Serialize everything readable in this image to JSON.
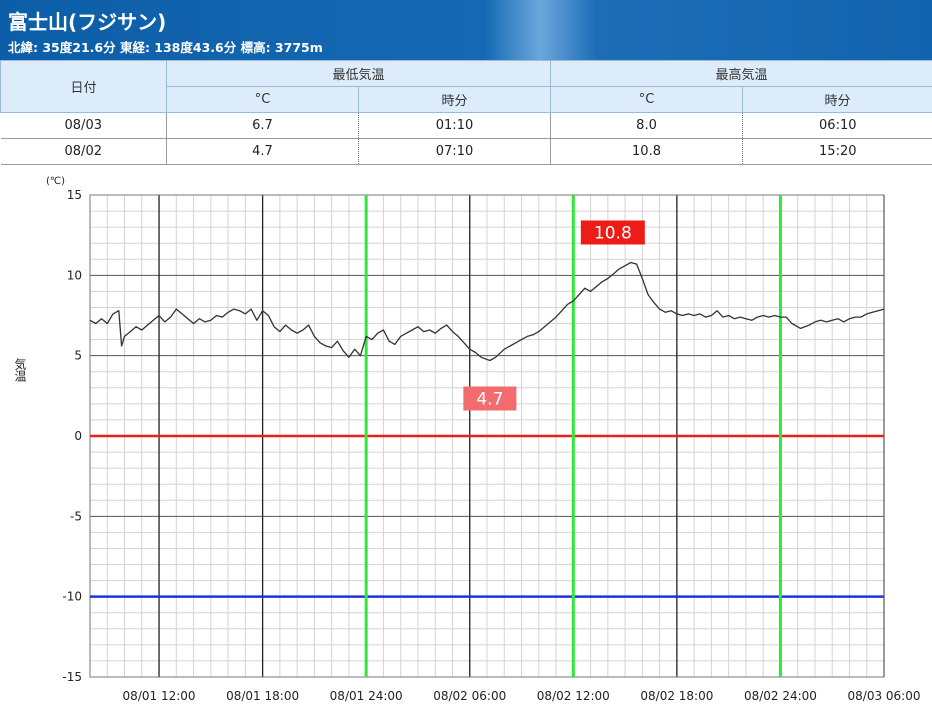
{
  "station": {
    "name": "富士山(フジサン)",
    "location": "北緯: 35度21.6分 東経: 138度43.6分 標高: 3775m"
  },
  "table": {
    "date_header": "日付",
    "min_header": "最低気温",
    "max_header": "最高気温",
    "unit_header": "°C",
    "time_header": "時分",
    "rows": [
      {
        "date": "08/03",
        "min_temp": "6.7",
        "min_time": "01:10",
        "max_temp": "8.0",
        "max_time": "06:10"
      },
      {
        "date": "08/02",
        "min_temp": "4.7",
        "min_time": "07:10",
        "max_temp": "10.8",
        "max_time": "15:20"
      }
    ]
  },
  "chart_data": {
    "type": "line",
    "ylabel": "気温",
    "yunit": "(℃)",
    "ylim": [
      -15,
      15
    ],
    "yticks": [
      15,
      10,
      5,
      0,
      -5,
      -10,
      -15
    ],
    "xlim": [
      "08/01 08:00",
      "08/03 06:00"
    ],
    "xtick_labels": [
      "08/01 12:00",
      "08/01 18:00",
      "08/01 24:00",
      "08/02 06:00",
      "08/02 12:00",
      "08/02 18:00",
      "08/02 24:00",
      "08/03 06:00"
    ],
    "day_boundaries": [
      "08/01 24:00",
      "08/02 12:00",
      "08/02 24:00"
    ],
    "reference_lines": [
      {
        "value": 0,
        "color": "#e8201e"
      },
      {
        "value": -10,
        "color": "#1f33d6"
      }
    ],
    "day_line_color": "#2ee83a",
    "series": [
      {
        "values": [
          [
            "08/01 08:00",
            7.2
          ],
          [
            "08/01 08:20",
            7.0
          ],
          [
            "08/01 08:40",
            7.3
          ],
          [
            "08/01 09:00",
            7.0
          ],
          [
            "08/01 09:20",
            7.6
          ],
          [
            "08/01 09:40",
            7.8
          ],
          [
            "08/01 09:50",
            5.6
          ],
          [
            "08/01 10:00",
            6.2
          ],
          [
            "08/01 10:20",
            6.5
          ],
          [
            "08/01 10:40",
            6.8
          ],
          [
            "08/01 11:00",
            6.6
          ],
          [
            "08/01 11:20",
            6.9
          ],
          [
            "08/01 11:40",
            7.2
          ],
          [
            "08/01 12:00",
            7.5
          ],
          [
            "08/01 12:20",
            7.1
          ],
          [
            "08/01 12:40",
            7.4
          ],
          [
            "08/01 13:00",
            7.9
          ],
          [
            "08/01 13:20",
            7.6
          ],
          [
            "08/01 13:40",
            7.3
          ],
          [
            "08/01 14:00",
            7.0
          ],
          [
            "08/01 14:20",
            7.3
          ],
          [
            "08/01 14:40",
            7.1
          ],
          [
            "08/01 15:00",
            7.2
          ],
          [
            "08/01 15:20",
            7.5
          ],
          [
            "08/01 15:40",
            7.4
          ],
          [
            "08/01 16:00",
            7.7
          ],
          [
            "08/01 16:20",
            7.9
          ],
          [
            "08/01 16:40",
            7.8
          ],
          [
            "08/01 17:00",
            7.6
          ],
          [
            "08/01 17:20",
            7.9
          ],
          [
            "08/01 17:40",
            7.2
          ],
          [
            "08/01 18:00",
            7.8
          ],
          [
            "08/01 18:20",
            7.5
          ],
          [
            "08/01 18:40",
            6.8
          ],
          [
            "08/01 19:00",
            6.5
          ],
          [
            "08/01 19:20",
            6.9
          ],
          [
            "08/01 19:40",
            6.6
          ],
          [
            "08/01 20:00",
            6.4
          ],
          [
            "08/01 20:20",
            6.6
          ],
          [
            "08/01 20:40",
            6.9
          ],
          [
            "08/01 21:00",
            6.2
          ],
          [
            "08/01 21:20",
            5.8
          ],
          [
            "08/01 21:40",
            5.6
          ],
          [
            "08/01 22:00",
            5.5
          ],
          [
            "08/01 22:20",
            5.9
          ],
          [
            "08/01 22:40",
            5.3
          ],
          [
            "08/01 23:00",
            4.9
          ],
          [
            "08/01 23:20",
            5.4
          ],
          [
            "08/01 23:40",
            5.0
          ],
          [
            "08/02 00:00",
            6.2
          ],
          [
            "08/02 00:20",
            6.0
          ],
          [
            "08/02 00:40",
            6.4
          ],
          [
            "08/02 01:00",
            6.6
          ],
          [
            "08/02 01:20",
            5.9
          ],
          [
            "08/02 01:40",
            5.7
          ],
          [
            "08/02 02:00",
            6.2
          ],
          [
            "08/02 02:20",
            6.4
          ],
          [
            "08/02 02:40",
            6.6
          ],
          [
            "08/02 03:00",
            6.8
          ],
          [
            "08/02 03:20",
            6.5
          ],
          [
            "08/02 03:40",
            6.6
          ],
          [
            "08/02 04:00",
            6.4
          ],
          [
            "08/02 04:20",
            6.7
          ],
          [
            "08/02 04:40",
            6.9
          ],
          [
            "08/02 05:00",
            6.5
          ],
          [
            "08/02 05:20",
            6.2
          ],
          [
            "08/02 05:40",
            5.8
          ],
          [
            "08/02 06:00",
            5.4
          ],
          [
            "08/02 06:20",
            5.2
          ],
          [
            "08/02 06:40",
            4.9
          ],
          [
            "08/02 07:10",
            4.7
          ],
          [
            "08/02 07:30",
            4.9
          ],
          [
            "08/02 08:00",
            5.4
          ],
          [
            "08/02 08:20",
            5.6
          ],
          [
            "08/02 08:40",
            5.8
          ],
          [
            "08/02 09:00",
            6.0
          ],
          [
            "08/02 09:20",
            6.2
          ],
          [
            "08/02 09:40",
            6.3
          ],
          [
            "08/02 10:00",
            6.5
          ],
          [
            "08/02 10:20",
            6.8
          ],
          [
            "08/02 10:40",
            7.1
          ],
          [
            "08/02 11:00",
            7.4
          ],
          [
            "08/02 11:20",
            7.8
          ],
          [
            "08/02 11:40",
            8.2
          ],
          [
            "08/02 12:00",
            8.4
          ],
          [
            "08/02 12:20",
            8.8
          ],
          [
            "08/02 12:40",
            9.2
          ],
          [
            "08/02 13:00",
            9.0
          ],
          [
            "08/02 13:20",
            9.3
          ],
          [
            "08/02 13:40",
            9.6
          ],
          [
            "08/02 14:00",
            9.8
          ],
          [
            "08/02 14:20",
            10.1
          ],
          [
            "08/02 14:40",
            10.4
          ],
          [
            "08/02 15:00",
            10.6
          ],
          [
            "08/02 15:20",
            10.8
          ],
          [
            "08/02 15:40",
            10.7
          ],
          [
            "08/02 16:00",
            9.8
          ],
          [
            "08/02 16:20",
            8.8
          ],
          [
            "08/02 16:40",
            8.3
          ],
          [
            "08/02 17:00",
            7.9
          ],
          [
            "08/02 17:20",
            7.7
          ],
          [
            "08/02 17:40",
            7.8
          ],
          [
            "08/02 18:00",
            7.6
          ],
          [
            "08/02 18:20",
            7.5
          ],
          [
            "08/02 18:40",
            7.6
          ],
          [
            "08/02 19:00",
            7.5
          ],
          [
            "08/02 19:20",
            7.6
          ],
          [
            "08/02 19:40",
            7.4
          ],
          [
            "08/02 20:00",
            7.5
          ],
          [
            "08/02 20:20",
            7.8
          ],
          [
            "08/02 20:40",
            7.4
          ],
          [
            "08/02 21:00",
            7.5
          ],
          [
            "08/02 21:20",
            7.3
          ],
          [
            "08/02 21:40",
            7.4
          ],
          [
            "08/02 22:00",
            7.3
          ],
          [
            "08/02 22:20",
            7.2
          ],
          [
            "08/02 22:40",
            7.4
          ],
          [
            "08/02 23:00",
            7.5
          ],
          [
            "08/02 23:20",
            7.4
          ],
          [
            "08/02 23:40",
            7.5
          ],
          [
            "08/03 00:00",
            7.4
          ],
          [
            "08/03 00:20",
            7.4
          ],
          [
            "08/03 00:40",
            7.0
          ],
          [
            "08/03 01:10",
            6.7
          ],
          [
            "08/03 01:40",
            6.9
          ],
          [
            "08/03 02:00",
            7.1
          ],
          [
            "08/03 02:20",
            7.2
          ],
          [
            "08/03 02:40",
            7.1
          ],
          [
            "08/03 03:00",
            7.2
          ],
          [
            "08/03 03:20",
            7.3
          ],
          [
            "08/03 03:40",
            7.1
          ],
          [
            "08/03 04:00",
            7.3
          ],
          [
            "08/03 04:20",
            7.4
          ],
          [
            "08/03 04:40",
            7.4
          ],
          [
            "08/03 05:00",
            7.6
          ],
          [
            "08/03 05:20",
            7.7
          ],
          [
            "08/03 05:40",
            7.8
          ],
          [
            "08/03 06:00",
            7.9
          ]
        ]
      }
    ],
    "annotations": [
      {
        "label": "10.8",
        "x": "08/02 15:20",
        "y": 10.8,
        "color": "#ee1c16"
      },
      {
        "label": "4.7",
        "x": "08/02 07:10",
        "y": 4.7,
        "color": "#f26b6e"
      }
    ]
  }
}
